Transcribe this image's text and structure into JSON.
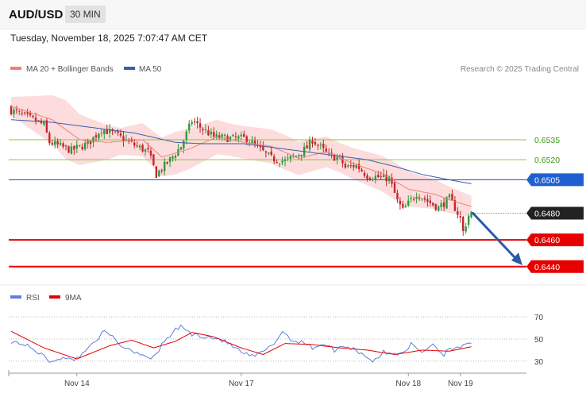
{
  "header": {
    "symbol": "AUD/USD",
    "timeframe": "30 MIN",
    "timestamp": "Tuesday, November 18, 2025 7:07:47 AM CET"
  },
  "credit": "Research © 2025 Trading Central",
  "colors": {
    "bullish": "#2e9a3a",
    "bearish": "#c4262b",
    "bollinger_fill": "#fbd6d6",
    "ma20": "#f08080",
    "ma50": "#3b5ea8",
    "resistance": "#8cc63f",
    "pivot": "#1f5fd1",
    "support": "#e60000",
    "last_price": "#222222",
    "rsi": "#5b7fdc",
    "rsi_ma": "#e60000",
    "arrow": "#2b5aa6"
  },
  "chart_data": [
    {
      "type": "candlestick",
      "legend": [
        {
          "label": "MA 20 + Bollinger Bands",
          "color": "#f08080"
        },
        {
          "label": "MA 50",
          "color": "#3b5ea8"
        }
      ],
      "x_tick_labels": [
        "Nov 14",
        "Nov 17",
        "Nov 18",
        "Nov 19"
      ],
      "x_ticks": [
        24,
        84,
        145,
        164
      ],
      "ylim": [
        0.6428,
        0.6573
      ],
      "candle_count": 168,
      "price_levels": [
        {
          "label": "0.6535",
          "value": 0.6535,
          "role": "resistance",
          "style": "green-text"
        },
        {
          "label": "0.6520",
          "value": 0.652,
          "role": "resistance",
          "style": "green-text"
        },
        {
          "label": "0.6505",
          "value": 0.6505,
          "role": "pivot",
          "style": "blue-box"
        },
        {
          "label": "0.6480",
          "value": 0.648,
          "role": "last",
          "style": "dark-box"
        },
        {
          "label": "0.6460",
          "value": 0.646,
          "role": "support",
          "style": "red-box"
        },
        {
          "label": "0.6440",
          "value": 0.644,
          "role": "support",
          "style": "red-box"
        }
      ],
      "projection": {
        "from": [
          168,
          0.648
        ],
        "to": [
          185,
          0.6441
        ]
      },
      "close_anchors": [
        [
          0,
          0.6557
        ],
        [
          8,
          0.655
        ],
        [
          12,
          0.6546
        ],
        [
          14,
          0.6533
        ],
        [
          22,
          0.6527
        ],
        [
          28,
          0.6532
        ],
        [
          33,
          0.6543
        ],
        [
          38,
          0.6539
        ],
        [
          44,
          0.6532
        ],
        [
          50,
          0.6526
        ],
        [
          53,
          0.6509
        ],
        [
          58,
          0.652
        ],
        [
          62,
          0.653
        ],
        [
          66,
          0.6549
        ],
        [
          70,
          0.6543
        ],
        [
          74,
          0.6537
        ],
        [
          80,
          0.6536
        ],
        [
          86,
          0.6536
        ],
        [
          90,
          0.6529
        ],
        [
          95,
          0.6521
        ],
        [
          100,
          0.6519
        ],
        [
          104,
          0.6523
        ],
        [
          108,
          0.6529
        ],
        [
          110,
          0.6535
        ],
        [
          112,
          0.6531
        ],
        [
          116,
          0.6523
        ],
        [
          120,
          0.6521
        ],
        [
          122,
          0.6514
        ],
        [
          126,
          0.6516
        ],
        [
          130,
          0.6508
        ],
        [
          134,
          0.6507
        ],
        [
          138,
          0.6506
        ],
        [
          141,
          0.6489
        ],
        [
          143,
          0.6482
        ],
        [
          148,
          0.6495
        ],
        [
          152,
          0.6489
        ],
        [
          156,
          0.6484
        ],
        [
          160,
          0.6491
        ],
        [
          162,
          0.6484
        ],
        [
          164,
          0.6476
        ],
        [
          165,
          0.6466
        ],
        [
          167,
          0.6478
        ],
        [
          168,
          0.648
        ]
      ],
      "ma20_anchors": [
        [
          0,
          0.656
        ],
        [
          15,
          0.655
        ],
        [
          25,
          0.6535
        ],
        [
          35,
          0.6533
        ],
        [
          48,
          0.6535
        ],
        [
          55,
          0.6522
        ],
        [
          65,
          0.6528
        ],
        [
          75,
          0.6537
        ],
        [
          85,
          0.6533
        ],
        [
          95,
          0.653
        ],
        [
          105,
          0.6521
        ],
        [
          115,
          0.6526
        ],
        [
          125,
          0.6517
        ],
        [
          135,
          0.651
        ],
        [
          145,
          0.6498
        ],
        [
          155,
          0.6494
        ],
        [
          160,
          0.649
        ],
        [
          168,
          0.6485
        ]
      ],
      "ma50_anchors": [
        [
          0,
          0.655
        ],
        [
          15,
          0.6548
        ],
        [
          30,
          0.6544
        ],
        [
          45,
          0.654
        ],
        [
          60,
          0.6533
        ],
        [
          70,
          0.6532
        ],
        [
          85,
          0.6532
        ],
        [
          100,
          0.6528
        ],
        [
          115,
          0.6524
        ],
        [
          130,
          0.652
        ],
        [
          140,
          0.6515
        ],
        [
          150,
          0.6509
        ],
        [
          160,
          0.6505
        ],
        [
          168,
          0.6502
        ]
      ],
      "band_halfwidth_anchors": [
        [
          0,
          0.0007
        ],
        [
          20,
          0.0022
        ],
        [
          40,
          0.001
        ],
        [
          60,
          0.0016
        ],
        [
          80,
          0.0012
        ],
        [
          100,
          0.0013
        ],
        [
          120,
          0.0011
        ],
        [
          140,
          0.0014
        ],
        [
          155,
          0.0011
        ],
        [
          168,
          0.0008
        ]
      ]
    },
    {
      "type": "line",
      "legend": [
        {
          "label": "RSI",
          "color": "#5b7fdc"
        },
        {
          "label": "9MA",
          "color": "#e60000"
        }
      ],
      "ylim": [
        22,
        78
      ],
      "y_ticks": [
        70,
        50,
        30
      ],
      "rsi_anchors": [
        [
          0,
          48
        ],
        [
          5,
          45
        ],
        [
          10,
          38
        ],
        [
          14,
          30
        ],
        [
          18,
          33
        ],
        [
          22,
          31
        ],
        [
          26,
          36
        ],
        [
          30,
          48
        ],
        [
          34,
          56
        ],
        [
          37,
          52
        ],
        [
          40,
          44
        ],
        [
          44,
          40
        ],
        [
          48,
          36
        ],
        [
          52,
          33
        ],
        [
          56,
          48
        ],
        [
          60,
          58
        ],
        [
          62,
          62
        ],
        [
          66,
          54
        ],
        [
          72,
          52
        ],
        [
          76,
          50
        ],
        [
          80,
          45
        ],
        [
          84,
          38
        ],
        [
          88,
          34
        ],
        [
          92,
          38
        ],
        [
          96,
          46
        ],
        [
          99,
          57
        ],
        [
          103,
          48
        ],
        [
          106,
          48
        ],
        [
          110,
          42
        ],
        [
          114,
          46
        ],
        [
          118,
          40
        ],
        [
          122,
          44
        ],
        [
          126,
          40
        ],
        [
          130,
          34
        ],
        [
          132,
          30
        ],
        [
          136,
          38
        ],
        [
          140,
          36
        ],
        [
          144,
          40
        ],
        [
          146,
          45
        ],
        [
          150,
          38
        ],
        [
          154,
          46
        ],
        [
          156,
          40
        ],
        [
          158,
          36
        ],
        [
          160,
          42
        ],
        [
          164,
          43
        ],
        [
          168,
          45
        ]
      ],
      "rsi_ma_anchors": [
        [
          0,
          57
        ],
        [
          12,
          42
        ],
        [
          24,
          32
        ],
        [
          36,
          44
        ],
        [
          44,
          49
        ],
        [
          52,
          42
        ],
        [
          60,
          48
        ],
        [
          66,
          56
        ],
        [
          74,
          52
        ],
        [
          84,
          42
        ],
        [
          92,
          36
        ],
        [
          100,
          46
        ],
        [
          110,
          45
        ],
        [
          120,
          42
        ],
        [
          130,
          40
        ],
        [
          140,
          36
        ],
        [
          150,
          40
        ],
        [
          160,
          39
        ],
        [
          168,
          43
        ]
      ]
    }
  ]
}
